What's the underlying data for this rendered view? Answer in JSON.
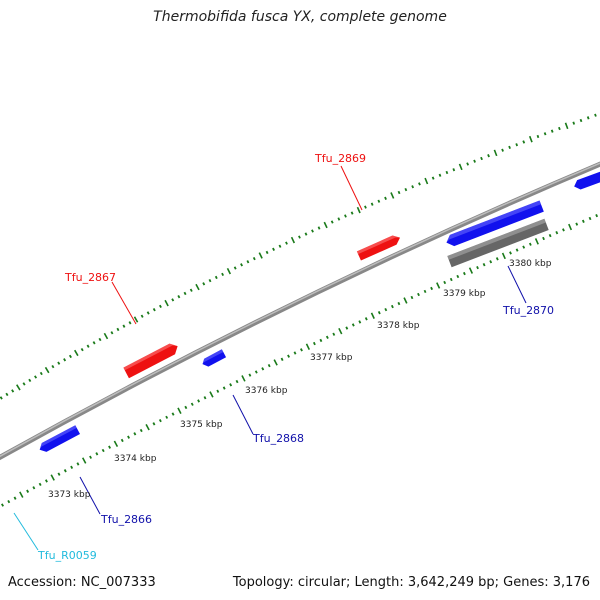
{
  "title": "Thermobifida fusca YX, complete genome",
  "footer": {
    "accession": "Accession: NC_007333",
    "summary": "Topology: circular; Length: 3,642,249 bp; Genes: 3,176"
  },
  "colors": {
    "forward_gene": "#ee1111",
    "reverse_gene": "#1111ee",
    "other_feature": "#666666",
    "rna_label": "#22bbdd",
    "tick": "#1a7a1a",
    "backbone": "#777777"
  },
  "scale": {
    "unit": "kbp",
    "labels": [
      {
        "kbp": 3373,
        "text": "3373 kbp"
      },
      {
        "kbp": 3374,
        "text": "3374 kbp"
      },
      {
        "kbp": 3375,
        "text": "3375 kbp"
      },
      {
        "kbp": 3376,
        "text": "3376 kbp"
      },
      {
        "kbp": 3377,
        "text": "3377 kbp"
      },
      {
        "kbp": 3378,
        "text": "3378 kbp"
      },
      {
        "kbp": 3379,
        "text": "3379 kbp"
      },
      {
        "kbp": 3380,
        "text": "3380 kbp"
      }
    ]
  },
  "features": [
    {
      "name": "Tfu_R0059",
      "strand": "reverse",
      "type": "rna"
    },
    {
      "name": "Tfu_2866",
      "strand": "reverse",
      "type": "gene"
    },
    {
      "name": "Tfu_2867",
      "strand": "forward",
      "type": "gene"
    },
    {
      "name": "Tfu_2868",
      "strand": "reverse",
      "type": "gene"
    },
    {
      "name": "Tfu_2869",
      "strand": "forward",
      "type": "gene"
    },
    {
      "name": "Tfu_2870",
      "strand": "reverse",
      "type": "gene"
    }
  ]
}
